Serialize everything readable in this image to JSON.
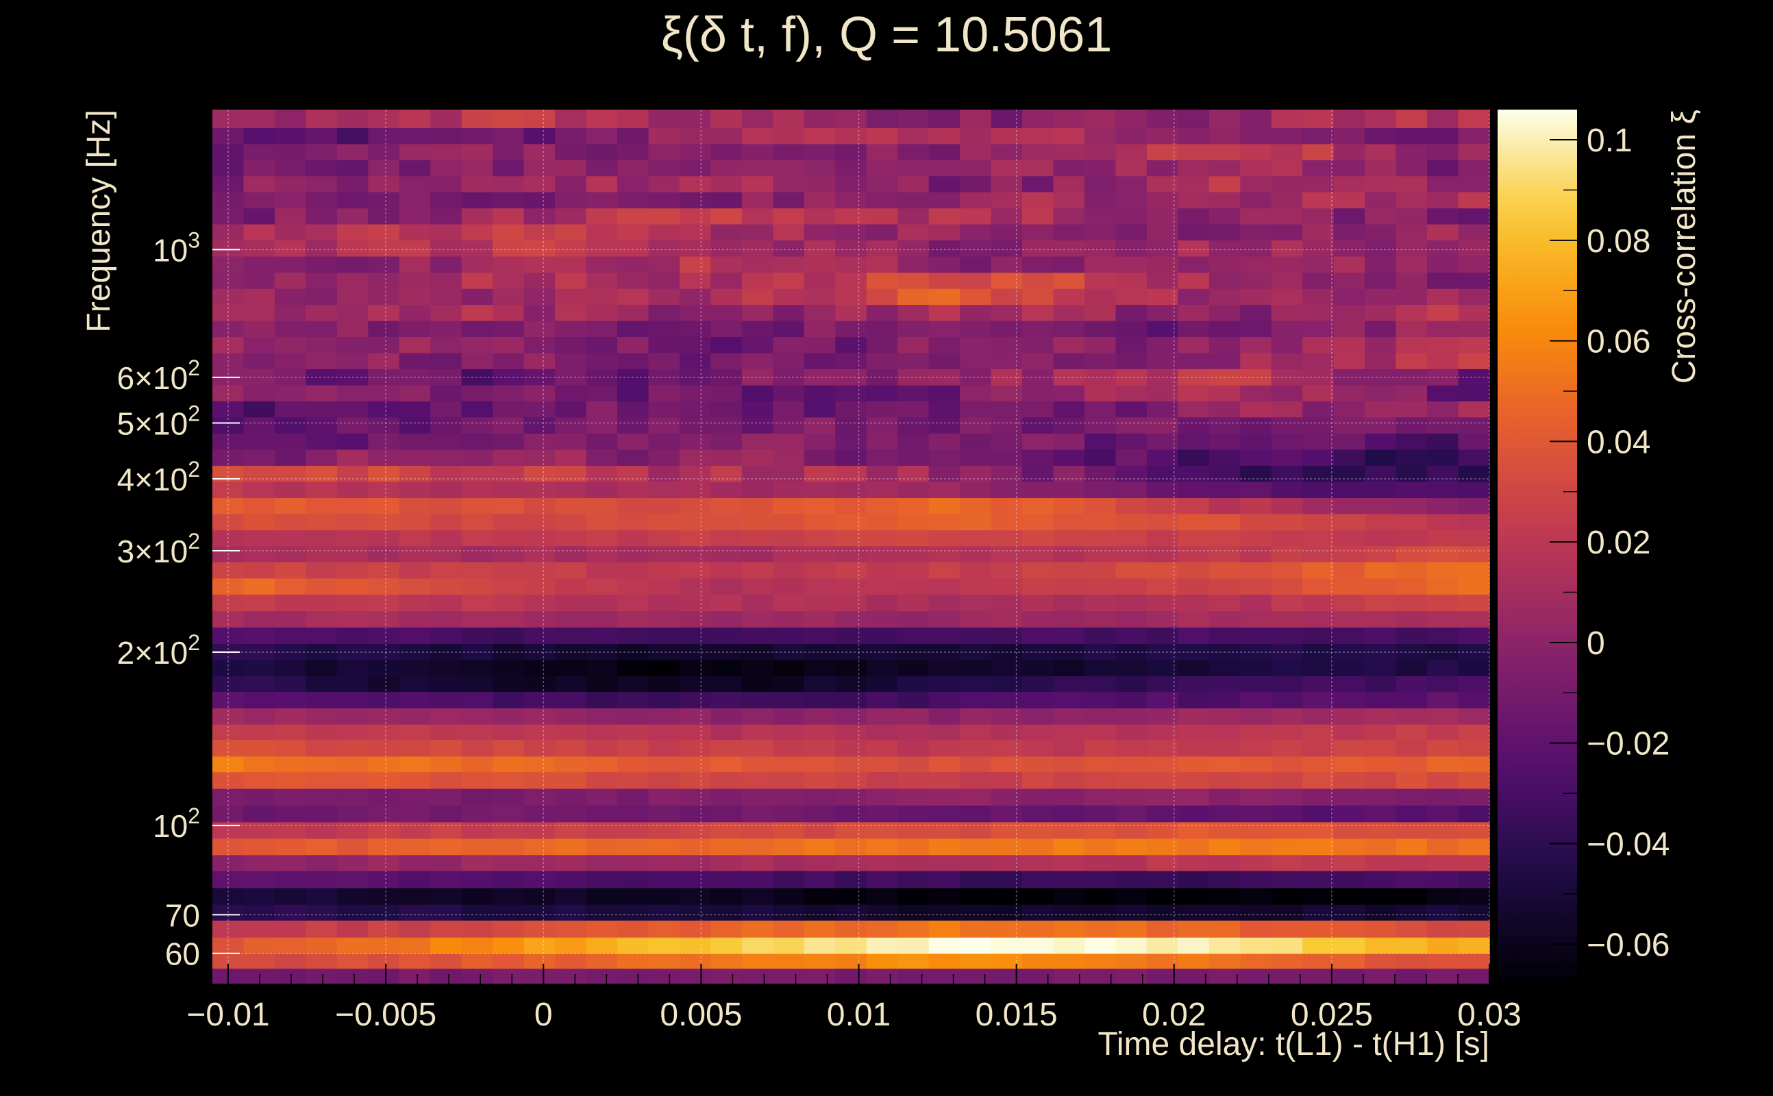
{
  "chart_data": {
    "type": "heatmap",
    "title": "ξ(δ t, f), Q = 10.5061",
    "xlabel": "Time delay: t(L1) - t(H1) [s]",
    "ylabel": "Frequency [Hz]",
    "colorbar_label": "Cross-correlation ξ",
    "x_scale": "linear",
    "y_scale": "log",
    "xlim": [
      -0.0105,
      0.03
    ],
    "ylim": [
      53,
      1750
    ],
    "zlim": [
      -0.068,
      0.106
    ],
    "grid": true,
    "colormap": "inferno",
    "x_ticks": [
      {
        "value": -0.01,
        "label": "−0.01"
      },
      {
        "value": -0.005,
        "label": "−0.005"
      },
      {
        "value": 0,
        "label": "0"
      },
      {
        "value": 0.005,
        "label": "0.005"
      },
      {
        "value": 0.01,
        "label": "0.01"
      },
      {
        "value": 0.015,
        "label": "0.015"
      },
      {
        "value": 0.02,
        "label": "0.02"
      },
      {
        "value": 0.025,
        "label": "0.025"
      },
      {
        "value": 0.03,
        "label": "0.03"
      }
    ],
    "y_ticks": [
      {
        "value": 60,
        "label": "60"
      },
      {
        "value": 70,
        "label": "70"
      },
      {
        "value": 100,
        "label": "10^2"
      },
      {
        "value": 200,
        "label": "2×10^2"
      },
      {
        "value": 300,
        "label": "3×10^2"
      },
      {
        "value": 400,
        "label": "4×10^2"
      },
      {
        "value": 500,
        "label": "5×10^2"
      },
      {
        "value": 600,
        "label": "6×10^2"
      },
      {
        "value": 1000,
        "label": "10^3"
      }
    ],
    "z_ticks": [
      {
        "value": 0.1,
        "label": "0.1"
      },
      {
        "value": 0.08,
        "label": "0.08"
      },
      {
        "value": 0.06,
        "label": "0.06"
      },
      {
        "value": 0.04,
        "label": "0.04"
      },
      {
        "value": 0.02,
        "label": "0.02"
      },
      {
        "value": 0,
        "label": "0"
      },
      {
        "value": -0.02,
        "label": "−0.02"
      },
      {
        "value": -0.04,
        "label": "−0.04"
      },
      {
        "value": -0.06,
        "label": "−0.06"
      }
    ],
    "frequency_bands": [
      {
        "f_low": 53,
        "f_high": 56.5,
        "values": [
          -0.01,
          -0.01,
          -0.01,
          -0.01,
          -0.01,
          -0.012
        ]
      },
      {
        "f_low": 56.5,
        "f_high": 60,
        "values": [
          0.03,
          0.04,
          0.055,
          0.065,
          0.05,
          0.035
        ]
      },
      {
        "f_low": 60,
        "f_high": 64,
        "values": [
          0.04,
          0.06,
          0.085,
          0.105,
          0.1,
          0.07
        ]
      },
      {
        "f_low": 64,
        "f_high": 68.5,
        "values": [
          0.02,
          0.03,
          0.045,
          0.055,
          0.045,
          0.03
        ]
      },
      {
        "f_low": 68.5,
        "f_high": 73,
        "values": [
          -0.04,
          -0.045,
          -0.05,
          -0.055,
          -0.055,
          -0.05
        ]
      },
      {
        "f_low": 73,
        "f_high": 78,
        "values": [
          -0.05,
          -0.055,
          -0.06,
          -0.065,
          -0.068,
          -0.065
        ]
      },
      {
        "f_low": 78,
        "f_high": 83.5,
        "values": [
          -0.02,
          -0.025,
          -0.03,
          -0.035,
          -0.035,
          -0.03
        ]
      },
      {
        "f_low": 83.5,
        "f_high": 89,
        "values": [
          0.0,
          0.005,
          0.01,
          0.015,
          0.02,
          0.02
        ]
      },
      {
        "f_low": 89,
        "f_high": 95,
        "values": [
          0.04,
          0.045,
          0.05,
          0.055,
          0.055,
          0.05
        ]
      },
      {
        "f_low": 95,
        "f_high": 101.5,
        "values": [
          0.02,
          0.025,
          0.03,
          0.035,
          0.04,
          0.035
        ]
      },
      {
        "f_low": 101.5,
        "f_high": 108.5,
        "values": [
          -0.015,
          -0.01,
          -0.012,
          -0.015,
          -0.02,
          -0.025
        ]
      },
      {
        "f_low": 108.5,
        "f_high": 116,
        "values": [
          -0.01,
          -0.01,
          -0.005,
          0.0,
          0.0,
          -0.01
        ]
      },
      {
        "f_low": 116,
        "f_high": 124,
        "values": [
          0.04,
          0.038,
          0.03,
          0.025,
          0.03,
          0.035
        ]
      },
      {
        "f_low": 124,
        "f_high": 132,
        "values": [
          0.055,
          0.05,
          0.04,
          0.035,
          0.04,
          0.045
        ]
      },
      {
        "f_low": 132,
        "f_high": 141,
        "values": [
          0.035,
          0.03,
          0.025,
          0.02,
          0.025,
          0.03
        ]
      },
      {
        "f_low": 141,
        "f_high": 150,
        "values": [
          0.025,
          0.02,
          0.015,
          0.015,
          0.02,
          0.025
        ]
      },
      {
        "f_low": 150,
        "f_high": 160,
        "values": [
          0.005,
          0.005,
          0.0,
          0.0,
          0.005,
          0.01
        ]
      },
      {
        "f_low": 160,
        "f_high": 171,
        "values": [
          -0.02,
          -0.03,
          -0.035,
          -0.03,
          -0.025,
          -0.02
        ]
      },
      {
        "f_low": 171,
        "f_high": 182,
        "values": [
          -0.04,
          -0.055,
          -0.06,
          -0.045,
          -0.035,
          -0.03
        ]
      },
      {
        "f_low": 182,
        "f_high": 194,
        "values": [
          -0.045,
          -0.06,
          -0.065,
          -0.055,
          -0.05,
          -0.045
        ]
      },
      {
        "f_low": 194,
        "f_high": 207,
        "values": [
          -0.04,
          -0.05,
          -0.055,
          -0.05,
          -0.045,
          -0.045
        ]
      },
      {
        "f_low": 207,
        "f_high": 221,
        "values": [
          -0.025,
          -0.03,
          -0.035,
          -0.03,
          -0.03,
          -0.03
        ]
      },
      {
        "f_low": 221,
        "f_high": 236,
        "values": [
          0.01,
          0.01,
          0.005,
          0.005,
          0.01,
          0.015
        ]
      },
      {
        "f_low": 236,
        "f_high": 252,
        "values": [
          0.025,
          0.02,
          0.015,
          0.01,
          0.015,
          0.03
        ]
      },
      {
        "f_low": 252,
        "f_high": 269,
        "values": [
          0.05,
          0.03,
          0.015,
          0.02,
          0.03,
          0.05
        ]
      },
      {
        "f_low": 269,
        "f_high": 287,
        "values": [
          0.03,
          0.025,
          0.02,
          0.025,
          0.035,
          0.055
        ]
      },
      {
        "f_low": 287,
        "f_high": 306,
        "values": [
          0.01,
          0.01,
          0.01,
          0.015,
          0.02,
          0.035
        ]
      },
      {
        "f_low": 306,
        "f_high": 326,
        "values": [
          0.02,
          0.02,
          0.025,
          0.03,
          0.025,
          0.02
        ]
      },
      {
        "f_low": 326,
        "f_high": 348,
        "values": [
          0.035,
          0.03,
          0.035,
          0.045,
          0.035,
          0.015
        ]
      },
      {
        "f_low": 348,
        "f_high": 371,
        "values": [
          0.045,
          0.035,
          0.035,
          0.05,
          0.02,
          -0.005
        ]
      },
      {
        "f_low": 371,
        "f_high": 396,
        "values": [
          0.02,
          0.015,
          0.01,
          0.005,
          -0.02,
          -0.03
        ]
      },
      {
        "f_low": 396,
        "f_high": 422,
        "values": [
          0.03,
          0.025,
          0.015,
          0.005,
          -0.035,
          -0.04
        ]
      },
      {
        "f_low": 422,
        "f_high": 450,
        "values": [
          -0.005,
          0.0,
          0.0,
          -0.01,
          -0.03,
          -0.035
        ]
      },
      {
        "f_low": 450,
        "f_high": 480,
        "values": [
          -0.015,
          -0.01,
          -0.005,
          -0.005,
          -0.02,
          -0.025
        ]
      },
      {
        "f_low": 480,
        "f_high": 512,
        "values": [
          -0.02,
          -0.015,
          -0.01,
          -0.01,
          -0.005,
          0.0
        ]
      },
      {
        "f_low": 512,
        "f_high": 546,
        "values": [
          -0.025,
          -0.015,
          -0.01,
          -0.02,
          0.0,
          0.01
        ]
      },
      {
        "f_low": 546,
        "f_high": 582,
        "values": [
          -0.005,
          -0.01,
          -0.015,
          -0.01,
          0.02,
          -0.02
        ]
      },
      {
        "f_low": 582,
        "f_high": 621,
        "values": [
          -0.01,
          -0.02,
          -0.01,
          0.0,
          0.025,
          -0.015
        ]
      },
      {
        "f_low": 621,
        "f_high": 662,
        "values": [
          0.0,
          -0.005,
          -0.01,
          -0.01,
          0.005,
          0.02
        ]
      },
      {
        "f_low": 662,
        "f_high": 706,
        "values": [
          0.005,
          0.0,
          -0.015,
          -0.005,
          0.0,
          0.01
        ]
      },
      {
        "f_low": 706,
        "f_high": 753,
        "values": [
          -0.005,
          0.0,
          -0.01,
          -0.005,
          -0.015,
          0.005
        ]
      },
      {
        "f_low": 753,
        "f_high": 803,
        "values": [
          0.0,
          0.01,
          0.0,
          0.01,
          -0.005,
          0.02
        ]
      },
      {
        "f_low": 803,
        "f_high": 856,
        "values": [
          0.01,
          0.0,
          0.01,
          0.045,
          0.0,
          0.005
        ]
      },
      {
        "f_low": 856,
        "f_high": 913,
        "values": [
          0.005,
          0.015,
          0.005,
          0.04,
          0.01,
          -0.005
        ]
      },
      {
        "f_low": 913,
        "f_high": 974,
        "values": [
          -0.005,
          0.0,
          0.02,
          0.0,
          -0.005,
          0.01
        ]
      },
      {
        "f_low": 974,
        "f_high": 1039,
        "values": [
          0.0,
          0.02,
          0.015,
          -0.005,
          0.01,
          0.0
        ]
      },
      {
        "f_low": 1039,
        "f_high": 1108,
        "values": [
          0.01,
          0.025,
          0.01,
          0.0,
          -0.01,
          0.015
        ]
      },
      {
        "f_low": 1108,
        "f_high": 1181,
        "values": [
          -0.01,
          0.005,
          0.025,
          0.015,
          0.0,
          -0.01
        ]
      },
      {
        "f_low": 1181,
        "f_high": 1260,
        "values": [
          0.0,
          -0.015,
          -0.005,
          0.01,
          0.005,
          0.015
        ]
      },
      {
        "f_low": 1260,
        "f_high": 1343,
        "values": [
          -0.005,
          0.0,
          0.015,
          -0.01,
          0.02,
          0.0
        ]
      },
      {
        "f_low": 1343,
        "f_high": 1432,
        "values": [
          -0.015,
          -0.005,
          0.005,
          0.0,
          0.01,
          -0.01
        ]
      },
      {
        "f_low": 1432,
        "f_high": 1527,
        "values": [
          -0.01,
          0.0,
          -0.01,
          0.0,
          0.025,
          0.0
        ]
      },
      {
        "f_low": 1527,
        "f_high": 1628,
        "values": [
          -0.02,
          -0.02,
          0.005,
          0.015,
          -0.005,
          -0.01
        ]
      },
      {
        "f_low": 1628,
        "f_high": 1750,
        "values": [
          0.005,
          0.02,
          0.01,
          -0.005,
          0.005,
          0.02
        ]
      }
    ],
    "anchor_times": [
      -0.0105,
      -0.0025,
      0.0055,
      0.0135,
      0.0215,
      0.03
    ]
  }
}
